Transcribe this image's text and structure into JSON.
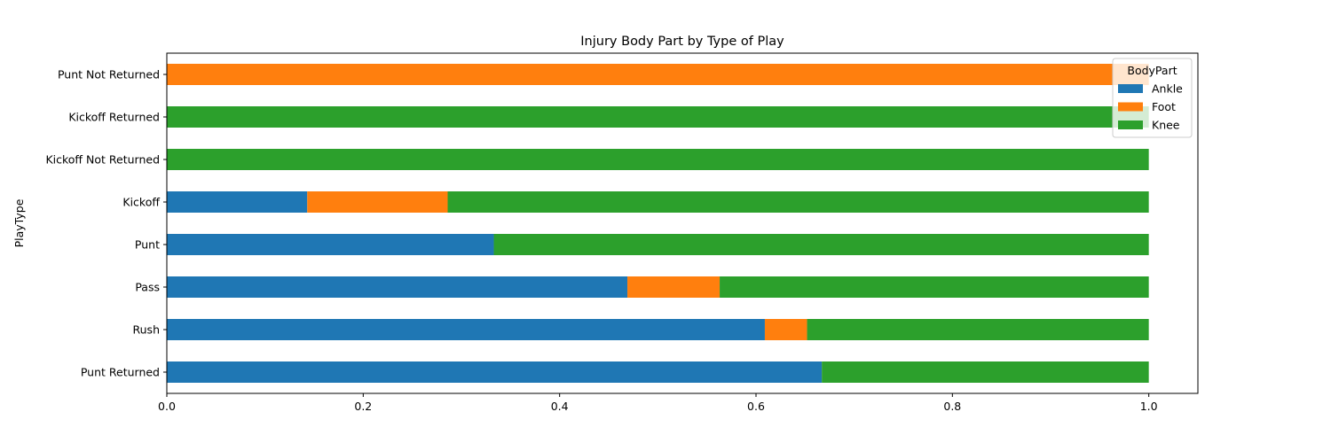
{
  "chart_data": {
    "type": "bar",
    "orientation": "horizontal",
    "stacked": true,
    "title": "Injury Body Part by Type of Play",
    "xlabel": "",
    "ylabel": "PlayType",
    "xlim": [
      0,
      1.05
    ],
    "xticks": [
      "0.0",
      "0.2",
      "0.4",
      "0.6",
      "0.8",
      "1.0"
    ],
    "grid": false,
    "legend_title": "BodyPart",
    "legend_position": "top-right",
    "categories": [
      "Punt Returned",
      "Rush",
      "Pass",
      "Punt",
      "Kickoff",
      "Kickoff Not Returned",
      "Kickoff Returned",
      "Punt Not Returned"
    ],
    "series": [
      {
        "name": "Ankle",
        "color": "#1f77b4",
        "values": [
          0.667,
          0.609,
          0.469,
          0.333,
          0.143,
          0.0,
          0.0,
          0.0
        ]
      },
      {
        "name": "Foot",
        "color": "#ff7f0e",
        "values": [
          0.0,
          0.043,
          0.094,
          0.0,
          0.143,
          0.0,
          0.0,
          1.0
        ]
      },
      {
        "name": "Knee",
        "color": "#2ca02c",
        "values": [
          0.333,
          0.348,
          0.437,
          0.667,
          0.714,
          1.0,
          1.0,
          0.0
        ]
      }
    ]
  }
}
